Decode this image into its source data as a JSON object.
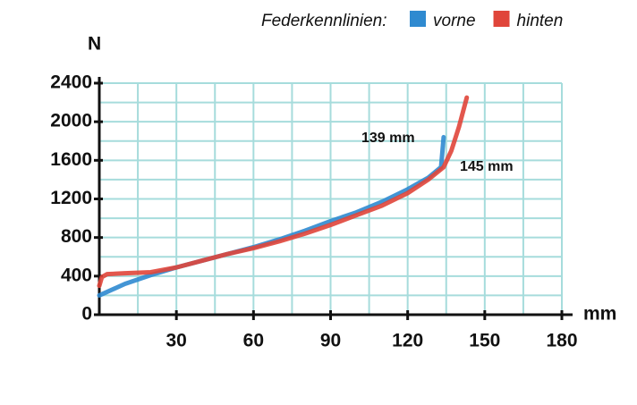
{
  "chart_data": {
    "type": "line",
    "legend_title": "Federkennlinien:",
    "y_label": "N",
    "x_label": "mm",
    "annotations": [
      "139 mm",
      "145 mm"
    ],
    "xlim": [
      0,
      180
    ],
    "ylim": [
      0,
      2400
    ],
    "xticks": [
      30,
      60,
      90,
      120,
      150,
      180
    ],
    "yticks": [
      0,
      400,
      800,
      1200,
      1600,
      2000,
      2400
    ],
    "xgrid": [
      15,
      30,
      45,
      60,
      75,
      90,
      105,
      120,
      135,
      150,
      165,
      180
    ],
    "ygrid": [
      200,
      400,
      600,
      800,
      1000,
      1200,
      1400,
      1600,
      1800,
      2000,
      2200,
      2400
    ],
    "grid": true,
    "legend": "top right",
    "series": [
      {
        "name": "vorne",
        "color": "#2f8ad0",
        "x": [
          0,
          10,
          20,
          30,
          40,
          50,
          60,
          70,
          80,
          90,
          100,
          110,
          120,
          128,
          133,
          134
        ],
        "values": [
          200,
          320,
          410,
          490,
          560,
          630,
          700,
          780,
          870,
          970,
          1060,
          1170,
          1300,
          1420,
          1530,
          1840
        ]
      },
      {
        "name": "hinten",
        "color": "#e0453a",
        "x": [
          0,
          1,
          3,
          10,
          20,
          30,
          40,
          50,
          60,
          70,
          80,
          90,
          100,
          110,
          120,
          128,
          134,
          137,
          140,
          143
        ],
        "values": [
          300,
          390,
          420,
          430,
          440,
          490,
          560,
          630,
          690,
          760,
          840,
          930,
          1030,
          1130,
          1260,
          1400,
          1530,
          1700,
          1950,
          2250
        ]
      }
    ]
  }
}
